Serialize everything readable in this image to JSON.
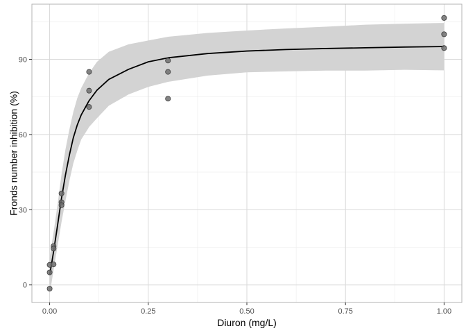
{
  "chart_data": {
    "type": "scatter",
    "xlabel": "Diuron (mg/L)",
    "ylabel": "Fronds number inhibition (%)",
    "xlim": [
      -0.045,
      1.045
    ],
    "ylim": [
      -7,
      112
    ],
    "x_ticks": [
      0.0,
      0.25,
      0.5,
      0.75,
      1.0
    ],
    "x_tick_labels": [
      "0.00",
      "0.25",
      "0.50",
      "0.75",
      "1.00"
    ],
    "y_ticks": [
      0,
      30,
      60,
      90
    ],
    "y_tick_labels": [
      "0",
      "30",
      "60",
      "90"
    ],
    "grid": true,
    "legend": "none",
    "points": [
      {
        "x": 0.0,
        "y": 8.0
      },
      {
        "x": 0.0,
        "y": 5.0
      },
      {
        "x": 0.0,
        "y": -1.5
      },
      {
        "x": 0.01,
        "y": 15.5
      },
      {
        "x": 0.01,
        "y": 14.5
      },
      {
        "x": 0.01,
        "y": 8.2
      },
      {
        "x": 0.03,
        "y": 36.5
      },
      {
        "x": 0.03,
        "y": 33.0
      },
      {
        "x": 0.03,
        "y": 31.8
      },
      {
        "x": 0.1,
        "y": 85.0
      },
      {
        "x": 0.1,
        "y": 77.5
      },
      {
        "x": 0.1,
        "y": 71.0
      },
      {
        "x": 0.3,
        "y": 89.5
      },
      {
        "x": 0.3,
        "y": 85.0
      },
      {
        "x": 0.3,
        "y": 74.3
      },
      {
        "x": 1.0,
        "y": 106.5
      },
      {
        "x": 1.0,
        "y": 100.0
      },
      {
        "x": 1.0,
        "y": 94.5
      }
    ],
    "fit_line": {
      "x": [
        0.0,
        0.005,
        0.01,
        0.02,
        0.03,
        0.04,
        0.05,
        0.06,
        0.07,
        0.08,
        0.1,
        0.12,
        0.15,
        0.2,
        0.25,
        0.3,
        0.4,
        0.5,
        0.6,
        0.7,
        0.8,
        0.9,
        1.0
      ],
      "y": [
        4.0,
        8.5,
        13.3,
        23.7,
        34.5,
        43.8,
        51.8,
        58.7,
        63.8,
        67.8,
        73.5,
        77.7,
        82.0,
        86.0,
        89.0,
        90.6,
        92.3,
        93.3,
        93.9,
        94.3,
        94.6,
        94.9,
        95.1
      ],
      "lower": [
        -3.5,
        1.0,
        6.0,
        15.5,
        25.0,
        33.5,
        41.5,
        48.5,
        53.5,
        58.0,
        63.0,
        66.5,
        71.5,
        76.0,
        79.0,
        81.0,
        83.5,
        84.8,
        85.2,
        85.5,
        85.5,
        85.8,
        85.6
      ],
      "upper": [
        11.0,
        16.0,
        21.0,
        32.0,
        44.0,
        54.0,
        62.0,
        69.0,
        74.5,
        78.5,
        84.5,
        89.0,
        93.0,
        96.0,
        97.5,
        99.0,
        100.5,
        101.5,
        102.3,
        103.0,
        103.8,
        104.2,
        104.5
      ]
    },
    "colors": {
      "panel_border": "#b3b3b3",
      "grid_major": "#d9d9d9",
      "grid_minor": "#ececec",
      "ribbon": "#d3d3d3",
      "line": "#000000",
      "point_fill": "#6e6e6e",
      "point_stroke": "#3a3a3a"
    }
  }
}
